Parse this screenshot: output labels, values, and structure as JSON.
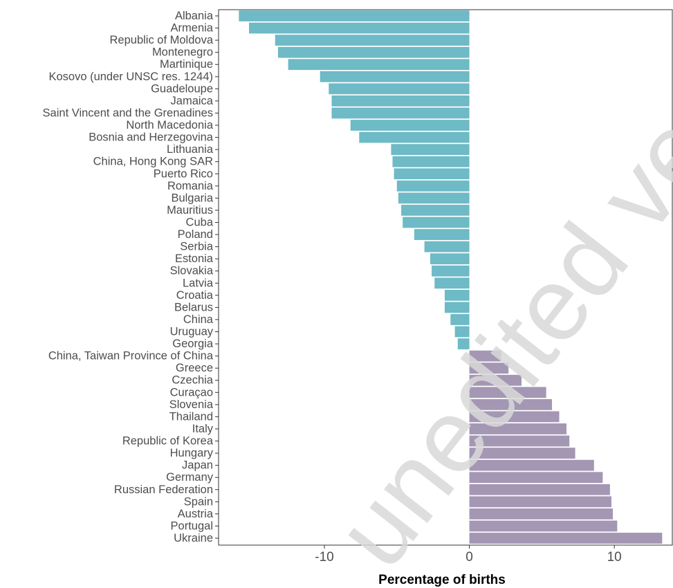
{
  "chart_data": {
    "type": "bar",
    "orientation": "horizontal",
    "title": "",
    "xlabel": "Percentage of births",
    "ylabel": "",
    "xlim": [
      -17.3,
      14.0
    ],
    "xticks": [
      -10,
      0,
      10
    ],
    "xtick_labels": [
      "-10",
      "0",
      "10"
    ],
    "grid": false,
    "colors": {
      "negative": "#6ebac6",
      "positive": "#a497b4"
    },
    "categories": [
      "Albania",
      "Armenia",
      "Republic of Moldova",
      "Montenegro",
      "Martinique",
      "Kosovo (under UNSC res. 1244)",
      "Guadeloupe",
      "Jamaica",
      "Saint Vincent and the Grenadines",
      "North Macedonia",
      "Bosnia and Herzegovina",
      "Lithuania",
      "China, Hong Kong SAR",
      "Puerto Rico",
      "Romania",
      "Bulgaria",
      "Mauritius",
      "Cuba",
      "Poland",
      "Serbia",
      "Estonia",
      "Slovakia",
      "Latvia",
      "Croatia",
      "Belarus",
      "China",
      "Uruguay",
      "Georgia",
      "China, Taiwan Province of China",
      "Greece",
      "Czechia",
      "Curaçao",
      "Slovenia",
      "Thailand",
      "Italy",
      "Republic of Korea",
      "Hungary",
      "Japan",
      "Germany",
      "Russian Federation",
      "Spain",
      "Austria",
      "Portugal",
      "Ukraine"
    ],
    "values": [
      -15.9,
      -15.2,
      -13.4,
      -13.2,
      -12.5,
      -10.3,
      -9.7,
      -9.5,
      -9.5,
      -8.2,
      -7.6,
      -5.4,
      -5.3,
      -5.2,
      -5.0,
      -4.9,
      -4.7,
      -4.6,
      -3.8,
      -3.1,
      -2.7,
      -2.6,
      -2.4,
      -1.7,
      -1.7,
      -1.3,
      -1.0,
      -0.8,
      2.2,
      2.7,
      3.6,
      5.3,
      5.7,
      6.2,
      6.7,
      6.9,
      7.3,
      8.6,
      9.2,
      9.7,
      9.8,
      9.9,
      10.2,
      13.3
    ]
  },
  "watermark": "unedited version"
}
